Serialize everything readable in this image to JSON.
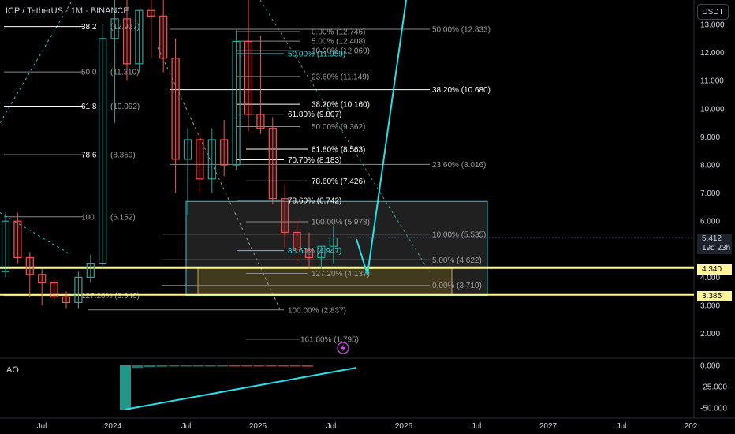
{
  "header": {
    "title": "ICP / TetherUS · 1M · BINANCE",
    "currency_button": "USDT"
  },
  "indicator": {
    "label": "AO"
  },
  "price_tags": {
    "current_price": "5.412",
    "countdown": "19d 23h",
    "level_upper": "4.340",
    "level_lower": "3.385"
  },
  "colors": {
    "background": "#000000",
    "up_candle": "#26a69a",
    "down_candle": "#ef5350",
    "highlight_line": "#fff59d",
    "cyan_projection": "#26e0e8",
    "gray_box": "#3a3a3a",
    "gold_box": "#6b5a1e"
  },
  "chart_data": {
    "type": "candlestick",
    "x_ticks": [
      "Jul",
      "2024",
      "Jul",
      "2025",
      "Jul",
      "2026",
      "Jul",
      "2027",
      "Jul",
      "202"
    ],
    "y_ticks": [
      "13.000",
      "12.000",
      "11.000",
      "10.000",
      "9.000",
      "8.000",
      "7.000",
      "6.000",
      "5.000",
      "4.000",
      "3.000",
      "2.000"
    ],
    "ylim": [
      1.0,
      13.5
    ],
    "ao_ticks": [
      "0.000",
      "-25.000",
      "-50.000"
    ],
    "ao_ylim": [
      -55,
      3
    ],
    "candles": [
      {
        "o": 4.2,
        "h": 6.3,
        "l": 4.0,
        "c": 6.0
      },
      {
        "o": 6.0,
        "h": 6.3,
        "l": 4.5,
        "c": 4.7
      },
      {
        "o": 4.7,
        "h": 4.9,
        "l": 3.3,
        "c": 4.1
      },
      {
        "o": 4.1,
        "h": 4.3,
        "l": 3.0,
        "c": 3.8
      },
      {
        "o": 3.8,
        "h": 4.0,
        "l": 3.1,
        "c": 3.3
      },
      {
        "o": 3.3,
        "h": 3.5,
        "l": 2.9,
        "c": 3.1
      },
      {
        "o": 3.1,
        "h": 4.2,
        "l": 2.9,
        "c": 4.0
      },
      {
        "o": 4.0,
        "h": 4.8,
        "l": 3.8,
        "c": 4.5
      },
      {
        "o": 4.5,
        "h": 13.0,
        "l": 4.3,
        "c": 12.5
      },
      {
        "o": 12.5,
        "h": 15.0,
        "l": 9.5,
        "c": 13.2
      },
      {
        "o": 13.2,
        "h": 14.0,
        "l": 11.0,
        "c": 11.6
      },
      {
        "o": 11.6,
        "h": 13.5,
        "l": 11.3,
        "c": 13.5
      },
      {
        "o": 13.5,
        "h": 14.0,
        "l": 11.8,
        "c": 13.3
      },
      {
        "o": 13.3,
        "h": 14.0,
        "l": 11.3,
        "c": 11.8
      },
      {
        "o": 11.8,
        "h": 12.5,
        "l": 7.0,
        "c": 8.2
      },
      {
        "o": 8.2,
        "h": 9.3,
        "l": 6.2,
        "c": 8.9
      },
      {
        "o": 8.9,
        "h": 9.2,
        "l": 7.0,
        "c": 7.5
      },
      {
        "o": 7.5,
        "h": 9.3,
        "l": 7.0,
        "c": 8.9
      },
      {
        "o": 8.9,
        "h": 9.6,
        "l": 7.6,
        "c": 8.0
      },
      {
        "o": 8.0,
        "h": 12.8,
        "l": 7.8,
        "c": 12.4
      },
      {
        "o": 12.4,
        "h": 14.0,
        "l": 9.2,
        "c": 9.8
      },
      {
        "o": 9.8,
        "h": 12.6,
        "l": 9.1,
        "c": 9.3
      },
      {
        "o": 9.3,
        "h": 9.7,
        "l": 6.6,
        "c": 6.8
      },
      {
        "o": 6.8,
        "h": 7.3,
        "l": 5.0,
        "c": 5.6
      },
      {
        "o": 5.6,
        "h": 6.1,
        "l": 4.5,
        "c": 5.0
      },
      {
        "o": 5.0,
        "h": 5.6,
        "l": 4.3,
        "c": 4.7
      },
      {
        "o": 4.7,
        "h": 5.1,
        "l": 4.3,
        "c": 5.1
      },
      {
        "o": 5.1,
        "h": 5.8,
        "l": 4.5,
        "c": 5.4
      }
    ],
    "ao_values": [
      -52,
      -3,
      -2,
      -1.6,
      -1.3,
      -1.0,
      -0.8,
      -0.5,
      -0.4,
      -0.3,
      -0.3,
      -0.5,
      -0.8,
      -1.0,
      -1.3,
      -1.6
    ],
    "fib_labels": [
      "38.2",
      "(12.927)",
      "50.0",
      "(11.310)",
      "61.8",
      "(10.092)",
      "78.6",
      "(8.359)",
      "100.",
      "(6.152)",
      "127.20% (3.346)",
      "50.00% (12.833)",
      "0.00% (12.746)",
      "5.00% (12.408)",
      "10.00% (12.069)",
      "50.00% (11.959)",
      "23.60% (11.149)",
      "38.20% (10.680)",
      "38.20% (10.160)",
      "61.80% (9.807)",
      "50.00% (9.362)",
      "61.80% (8.563)",
      "70.70% (8.183)",
      "23.60% (8.016)",
      "78.60% (7.426)",
      "78.60% (6.742)",
      "100.00% (5.978)",
      "10.00% (5.535)",
      "88.60% (4.947)",
      "5.00% (4.622)",
      "127.20% (4.137)",
      "0.00% (3.710)",
      "100.00% (2.837)",
      "161.80% (1.795)"
    ]
  }
}
